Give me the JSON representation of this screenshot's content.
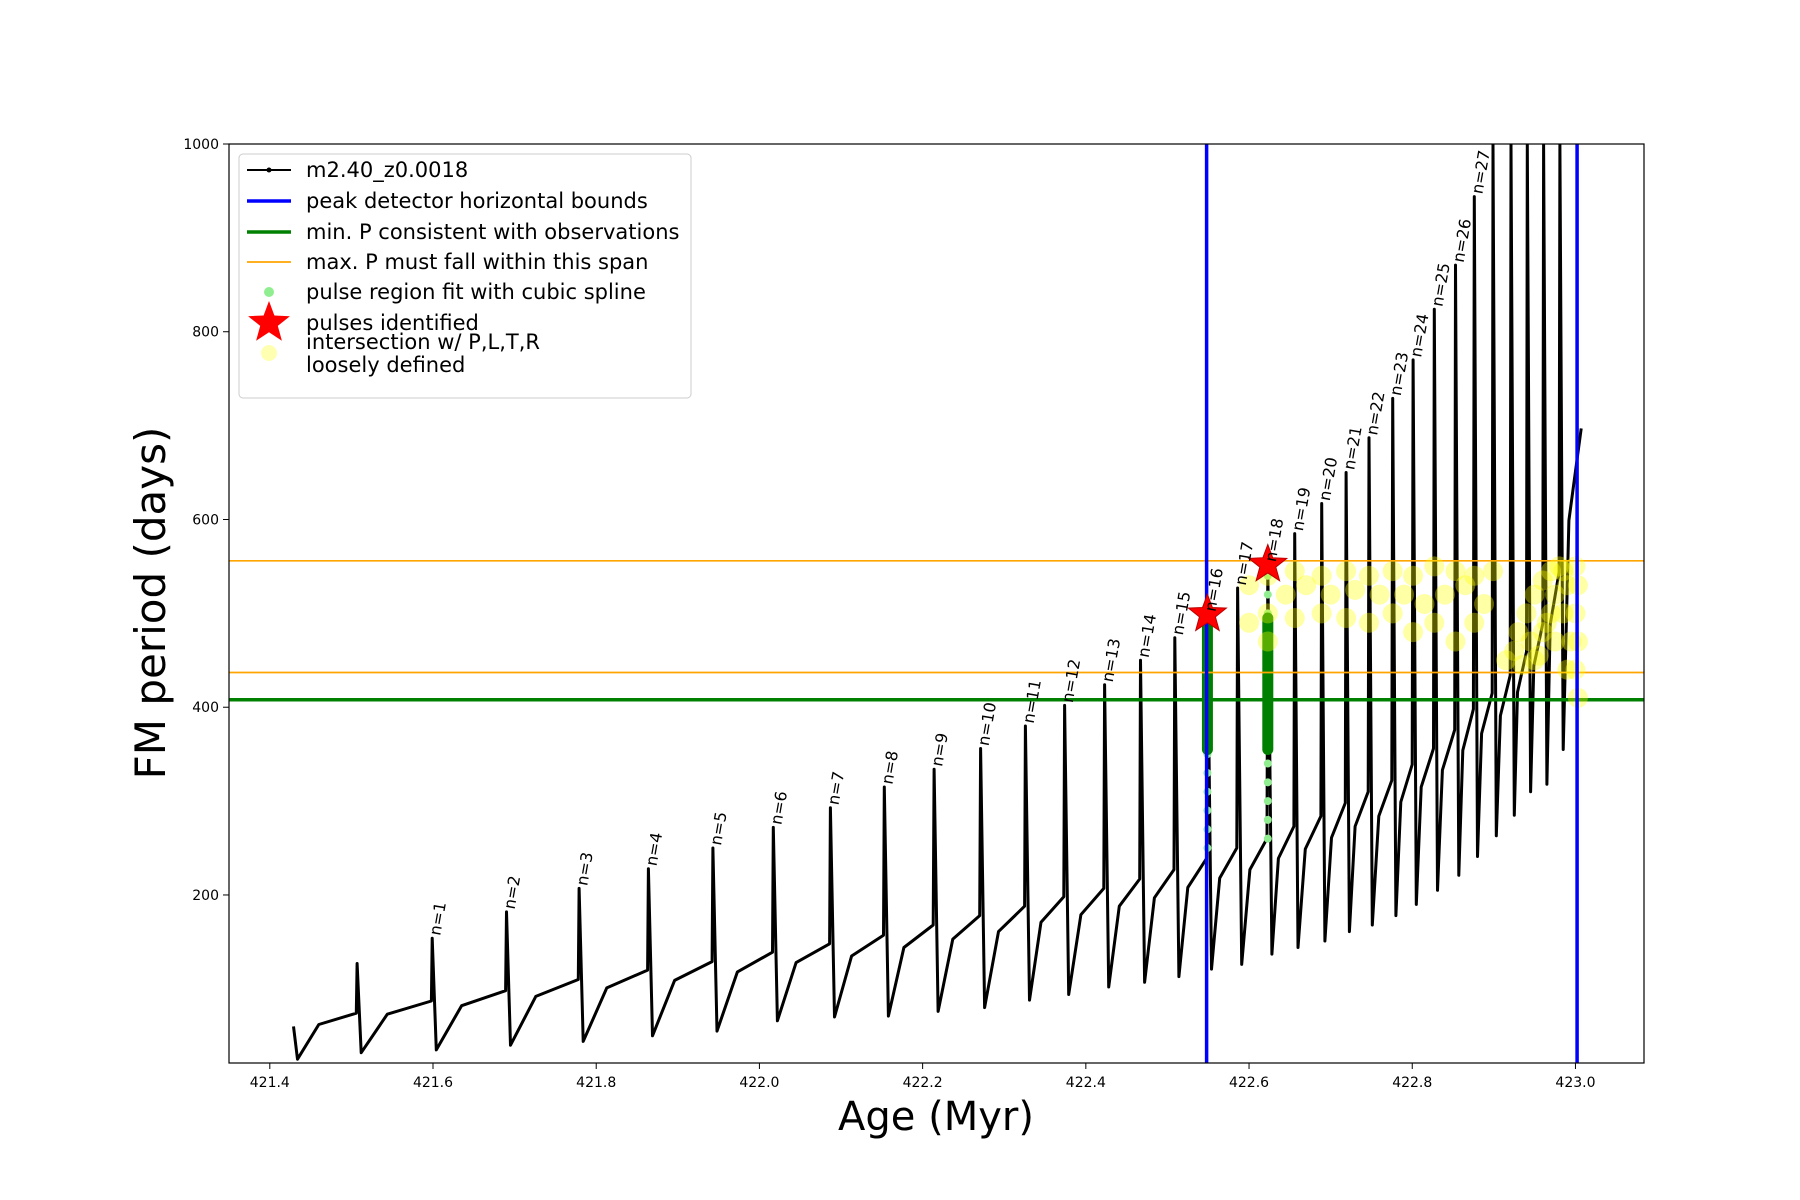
{
  "chart_data": {
    "type": "line",
    "xlabel": "Age (Myr)",
    "ylabel": "FM period (days)",
    "xlim": [
      421.35,
      423.084
    ],
    "ylim": [
      21,
      1000
    ],
    "xticks": [
      421.4,
      421.6,
      421.8,
      {
        "value": 422,
        "label": "422.0"
      },
      422.2,
      422.4,
      422.6,
      422.8,
      {
        "value": 423,
        "label": "423.0"
      }
    ],
    "yticks": [
      200,
      400,
      600,
      800,
      1000
    ],
    "legend": "upper left",
    "series": [
      {
        "name": "m2.40_z0.0018",
        "color": "#000000",
        "x": [
          421.429,
          421.434,
          421.46,
          421.506,
          421.507,
          421.512,
          421.544,
          421.598,
          421.599,
          421.604,
          421.635,
          421.689,
          421.69,
          421.695,
          421.726,
          421.778,
          421.779,
          421.784,
          421.813,
          421.863,
          421.864,
          421.869,
          421.896,
          421.942,
          421.943,
          421.948,
          421.973,
          422.016,
          422.017,
          422.022,
          422.045,
          422.086,
          422.087,
          422.092,
          422.113,
          422.152,
          422.153,
          422.158,
          422.177,
          422.213,
          422.214,
          422.219,
          422.237,
          422.27,
          422.271,
          422.276,
          422.293,
          422.325,
          422.326,
          422.331,
          422.345,
          422.373,
          422.374,
          422.379,
          422.394,
          422.422,
          422.423,
          422.428,
          422.441,
          422.466,
          422.467,
          422.472,
          422.484,
          422.508,
          422.509,
          422.514,
          422.525,
          422.548,
          422.549,
          422.554,
          422.564,
          422.585,
          422.586,
          422.591,
          422.601,
          422.622,
          422.623,
          422.628,
          422.636,
          422.655,
          422.656,
          422.66,
          422.669,
          422.688,
          422.689,
          422.693,
          422.701,
          422.718,
          422.719,
          422.723,
          422.73,
          422.746,
          422.747,
          422.751,
          422.759,
          422.775,
          422.776,
          422.78,
          422.786,
          422.8,
          422.801,
          422.805,
          422.811,
          422.826,
          422.827,
          422.831,
          422.837,
          422.852,
          422.853,
          422.857,
          422.862,
          422.875,
          422.876,
          422.88,
          422.885,
          422.898,
          422.899,
          422.903,
          422.908,
          422.92,
          422.921,
          422.925,
          422.929,
          422.94,
          422.941,
          422.945,
          422.949,
          422.96,
          422.961,
          422.965,
          422.969,
          422.98,
          422.981,
          422.985,
          422.992,
          423.007
        ],
        "values": [
          60,
          25,
          62,
          74,
          127,
          32,
          73,
          87,
          154,
          35,
          82,
          98,
          182,
          40,
          92,
          110,
          207,
          44,
          101,
          120,
          228,
          50,
          109,
          129,
          250,
          55,
          118,
          139,
          272,
          66,
          128,
          148,
          293,
          70,
          135,
          157,
          315,
          71,
          144,
          168,
          334,
          76,
          153,
          178,
          356,
          80,
          161,
          188,
          380,
          88,
          171,
          198,
          402,
          94,
          179,
          207,
          424,
          102,
          188,
          217,
          450,
          107,
          197,
          227,
          474,
          113,
          208,
          239,
          499,
          121,
          218,
          250,
          527,
          126,
          227,
          260,
          552,
          137,
          239,
          273,
          585,
          144,
          249,
          284,
          617,
          151,
          261,
          298,
          650,
          161,
          273,
          310,
          687,
          168,
          284,
          322,
          729,
          178,
          299,
          339,
          770,
          190,
          315,
          356,
          824,
          205,
          333,
          376,
          871,
          221,
          354,
          398,
          944,
          241,
          372,
          415,
          1000,
          263,
          391,
          434,
          1000,
          285,
          416,
          459,
          1000,
          310,
          444,
          489,
          1000,
          318,
          488,
          544,
          1000,
          355,
          599,
          697
        ]
      }
    ],
    "vlines": {
      "name": "peak detector horizontal bounds",
      "color": "#0000ff",
      "x": [
        422.548,
        423.002
      ]
    },
    "hlines": [
      {
        "name": "min. P consistent with observations",
        "color": "#008000",
        "values": [
          408
        ]
      },
      {
        "name": "max. P must fall within this span",
        "color": "#ffa500",
        "values": [
          437,
          556
        ]
      }
    ],
    "pulse_region": {
      "name": "pulse region fit with cubic spline",
      "color": "#90ee90",
      "x": [
        422.549,
        422.549,
        422.549,
        422.549,
        422.549,
        422.549,
        422.549,
        422.549,
        422.549,
        422.549,
        422.549,
        422.549,
        422.549,
        422.623,
        422.623,
        422.623,
        422.623,
        422.623,
        422.623,
        422.623,
        422.623,
        422.623,
        422.623,
        422.623,
        422.623,
        422.623,
        422.623,
        422.623
      ],
      "values": [
        250,
        270,
        290,
        310,
        330,
        350,
        370,
        390,
        410,
        430,
        450,
        470,
        490,
        260,
        280,
        300,
        320,
        340,
        360,
        380,
        400,
        420,
        440,
        460,
        480,
        500,
        520,
        540
      ]
    },
    "spline_segments": {
      "color": "#008000",
      "x": [
        422.549,
        422.623
      ],
      "low": [
        355,
        355
      ],
      "high": [
        495,
        495
      ]
    },
    "pulses": {
      "name": "pulses identified",
      "color": "#ff0000",
      "x": [
        422.549,
        422.623
      ],
      "values": [
        499,
        552
      ]
    },
    "intersections": {
      "name": "intersection w/ P,L,T,R\nloosely defined",
      "color": "#ffff00",
      "x": [
        422.6,
        422.6,
        422.623,
        422.623,
        422.623,
        422.645,
        422.656,
        422.656,
        422.67,
        422.689,
        422.689,
        422.7,
        422.719,
        422.719,
        422.73,
        422.747,
        422.747,
        422.76,
        422.776,
        422.776,
        422.79,
        422.801,
        422.801,
        422.815,
        422.827,
        422.827,
        422.84,
        422.853,
        422.853,
        422.865,
        422.876,
        422.876,
        422.888,
        422.899,
        422.915,
        422.925,
        422.93,
        422.935,
        422.94,
        422.945,
        422.95,
        422.955,
        422.96,
        422.965,
        422.97,
        422.975,
        422.98,
        422.985,
        422.99,
        422.995,
        423.0,
        423.0,
        423.0,
        422.99,
        422.975,
        422.96,
        422.95,
        422.985,
        422.97,
        423.003,
        423.003,
        423.003
      ],
      "values": [
        530,
        490,
        540,
        500,
        470,
        520,
        545,
        495,
        530,
        540,
        500,
        520,
        545,
        495,
        525,
        540,
        490,
        520,
        545,
        500,
        520,
        540,
        480,
        510,
        550,
        490,
        520,
        545,
        470,
        530,
        540,
        490,
        510,
        545,
        450,
        460,
        480,
        445,
        500,
        470,
        520,
        455,
        535,
        490,
        545,
        470,
        550,
        500,
        530,
        470,
        550,
        500,
        440,
        440,
        520,
        480,
        450,
        545,
        500,
        410,
        470,
        530
      ]
    },
    "annotations": [
      {
        "text": "n=1",
        "x": 421.599,
        "y": 154
      },
      {
        "text": "n=2",
        "x": 421.69,
        "y": 182
      },
      {
        "text": "n=3",
        "x": 421.779,
        "y": 207
      },
      {
        "text": "n=4",
        "x": 421.864,
        "y": 228
      },
      {
        "text": "n=5",
        "x": 421.943,
        "y": 250
      },
      {
        "text": "n=6",
        "x": 422.017,
        "y": 272
      },
      {
        "text": "n=7",
        "x": 422.087,
        "y": 293
      },
      {
        "text": "n=8",
        "x": 422.153,
        "y": 315
      },
      {
        "text": "n=9",
        "x": 422.214,
        "y": 334
      },
      {
        "text": "n=10",
        "x": 422.271,
        "y": 356
      },
      {
        "text": "n=11",
        "x": 422.326,
        "y": 380
      },
      {
        "text": "n=12",
        "x": 422.374,
        "y": 402
      },
      {
        "text": "n=13",
        "x": 422.423,
        "y": 424
      },
      {
        "text": "n=14",
        "x": 422.467,
        "y": 450
      },
      {
        "text": "n=15",
        "x": 422.509,
        "y": 474
      },
      {
        "text": "n=16",
        "x": 422.549,
        "y": 499
      },
      {
        "text": "n=17",
        "x": 422.586,
        "y": 527
      },
      {
        "text": "n=18",
        "x": 422.623,
        "y": 552
      },
      {
        "text": "n=19",
        "x": 422.656,
        "y": 585
      },
      {
        "text": "n=20",
        "x": 422.689,
        "y": 617
      },
      {
        "text": "n=21",
        "x": 422.719,
        "y": 650
      },
      {
        "text": "n=22",
        "x": 422.747,
        "y": 687
      },
      {
        "text": "n=23",
        "x": 422.776,
        "y": 729
      },
      {
        "text": "n=24",
        "x": 422.801,
        "y": 770
      },
      {
        "text": "n=25",
        "x": 422.827,
        "y": 824
      },
      {
        "text": "n=26",
        "x": 422.853,
        "y": 871
      },
      {
        "text": "n=27",
        "x": 422.876,
        "y": 944
      }
    ]
  }
}
